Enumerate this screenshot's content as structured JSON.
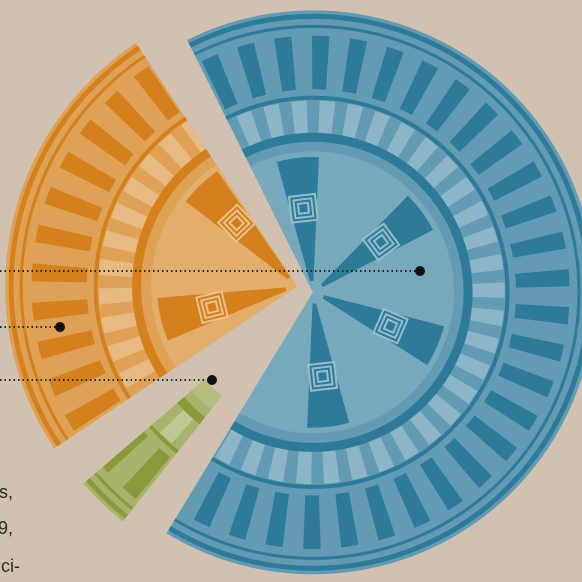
{
  "chart_data": {
    "type": "pie",
    "series": [
      {
        "name": null,
        "color": "#2d7a99",
        "values": [
          68
        ]
      },
      {
        "name": null,
        "color": "#8a9a3a",
        "values": [
          5
        ]
      },
      {
        "name": null,
        "color": "#d4811d",
        "values": [
          27
        ]
      }
    ],
    "text_fragments": [
      "s,",
      "9,",
      "ci-"
    ]
  }
}
